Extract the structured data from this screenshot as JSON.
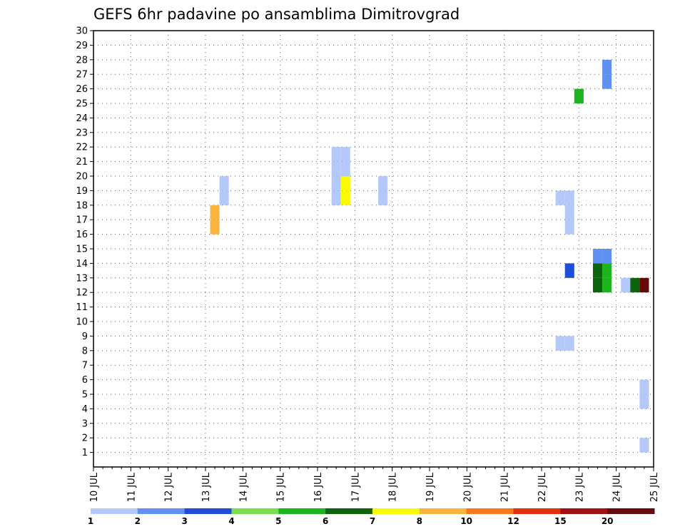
{
  "chart_data": {
    "type": "heatmap",
    "title": "GEFS 6hr padavine po ansamblima Dimitrovgrad",
    "xlabel": "",
    "ylabel": "",
    "y_ticks": [
      1,
      2,
      3,
      4,
      5,
      6,
      7,
      8,
      9,
      10,
      11,
      12,
      13,
      14,
      15,
      16,
      17,
      18,
      19,
      20,
      21,
      22,
      23,
      24,
      25,
      26,
      27,
      28,
      29,
      30
    ],
    "x_ticks": [
      "10 JUL",
      "11 JUL",
      "12 JUL",
      "13 JUL",
      "14 JUL",
      "15 JUL",
      "16 JUL",
      "17 JUL",
      "18 JUL",
      "19 JUL",
      "20 JUL",
      "21 JUL",
      "22 JUL",
      "23 JUL",
      "24 JUL",
      "25 JUL"
    ],
    "xlim": [
      0,
      15
    ],
    "ylim": [
      0,
      30
    ],
    "grid": true,
    "color_scale": {
      "colors": [
        "#b4c8fa",
        "#6090f0",
        "#1e4ed8",
        "#78e050",
        "#1eb41e",
        "#0c640c",
        "#fafa00",
        "#f8b43c",
        "#f8781e",
        "#e03010",
        "#a01010",
        "#640a0a"
      ],
      "labels": [
        "1",
        "2",
        "3",
        "4",
        "5",
        "6",
        "7",
        "8",
        "10",
        "12",
        "15",
        "20"
      ]
    },
    "cells": [
      {
        "day": 3.25,
        "member": 17,
        "value": 8
      },
      {
        "day": 3.25,
        "member": 18,
        "value": 8
      },
      {
        "day": 3.5,
        "member": 19,
        "value": 1
      },
      {
        "day": 3.5,
        "member": 20,
        "value": 1
      },
      {
        "day": 6.5,
        "member": 19,
        "value": 1
      },
      {
        "day": 6.5,
        "member": 20,
        "value": 1
      },
      {
        "day": 6.75,
        "member": 19,
        "value": 7
      },
      {
        "day": 6.75,
        "member": 20,
        "value": 7
      },
      {
        "day": 6.5,
        "member": 21,
        "value": 1
      },
      {
        "day": 6.5,
        "member": 22,
        "value": 1
      },
      {
        "day": 6.75,
        "member": 21,
        "value": 1
      },
      {
        "day": 6.75,
        "member": 22,
        "value": 1
      },
      {
        "day": 7.75,
        "member": 19,
        "value": 1
      },
      {
        "day": 7.75,
        "member": 20,
        "value": 1
      },
      {
        "day": 12.5,
        "member": 9,
        "value": 1
      },
      {
        "day": 12.75,
        "member": 9,
        "value": 1
      },
      {
        "day": 12.5,
        "member": 19,
        "value": 1
      },
      {
        "day": 12.75,
        "member": 19,
        "value": 1
      },
      {
        "day": 12.75,
        "member": 18,
        "value": 1
      },
      {
        "day": 12.75,
        "member": 17,
        "value": 1
      },
      {
        "day": 12.75,
        "member": 14,
        "value": 3
      },
      {
        "day": 13.0,
        "member": 26,
        "value": 5
      },
      {
        "day": 13.5,
        "member": 13,
        "value": 6
      },
      {
        "day": 13.5,
        "member": 14,
        "value": 6
      },
      {
        "day": 13.5,
        "member": 15,
        "value": 2
      },
      {
        "day": 13.75,
        "member": 13,
        "value": 5
      },
      {
        "day": 13.75,
        "member": 14,
        "value": 5
      },
      {
        "day": 13.75,
        "member": 15,
        "value": 2
      },
      {
        "day": 13.75,
        "member": 27,
        "value": 2
      },
      {
        "day": 13.75,
        "member": 28,
        "value": 2
      },
      {
        "day": 14.25,
        "member": 13,
        "value": 1
      },
      {
        "day": 14.5,
        "member": 13,
        "value": 6
      },
      {
        "day": 14.75,
        "member": 13,
        "value": 20
      },
      {
        "day": 14.75,
        "member": 2,
        "value": 1
      },
      {
        "day": 14.75,
        "member": 5,
        "value": 1
      },
      {
        "day": 14.75,
        "member": 6,
        "value": 1
      }
    ]
  }
}
